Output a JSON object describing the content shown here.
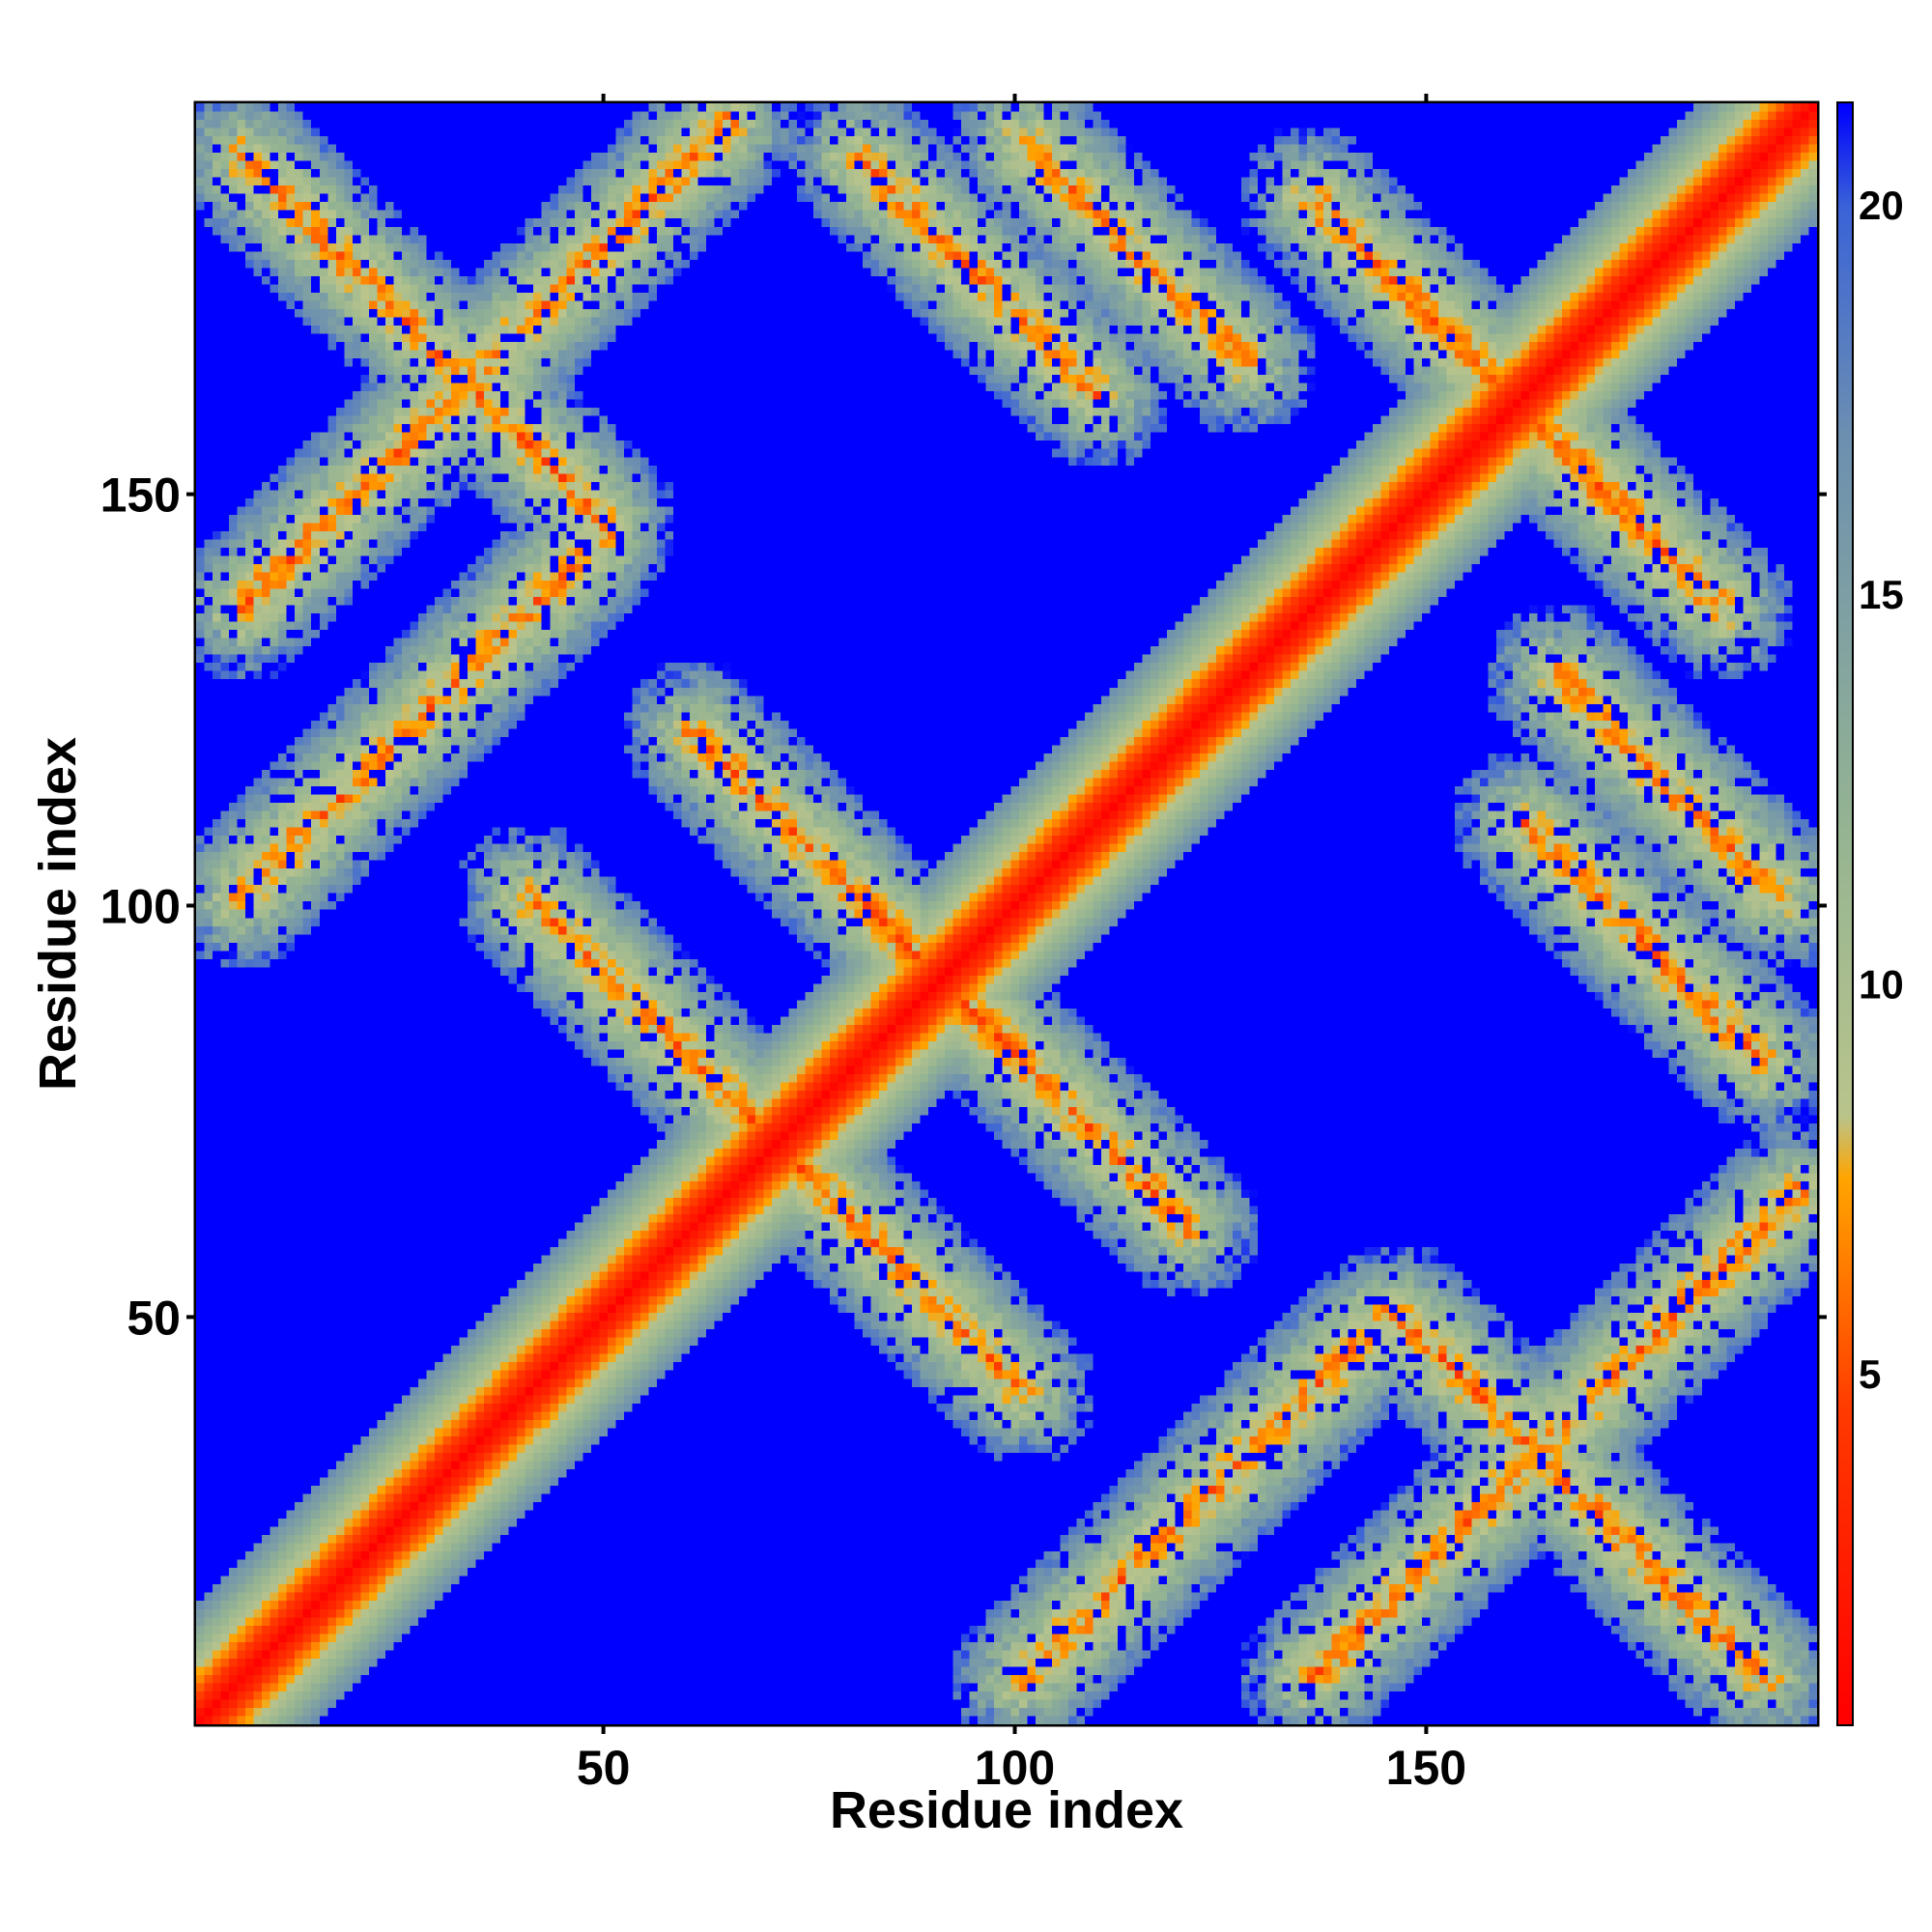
{
  "chart_data": {
    "type": "heatmap",
    "title": "",
    "xlabel": "Residue index",
    "ylabel": "Residue index",
    "xlim": [
      1,
      197
    ],
    "ylim": [
      1,
      197
    ],
    "xticks": [
      50,
      100,
      150
    ],
    "yticks": [
      50,
      100,
      150
    ],
    "colorbar": {
      "ticks": [
        5,
        10,
        15,
        20
      ],
      "range": [
        0.5,
        21.3
      ],
      "colors": [
        {
          "value": 0.5,
          "color": "#ff0000"
        },
        {
          "value": 4.5,
          "color": "#ff3a00"
        },
        {
          "value": 7.5,
          "color": "#ffa500"
        },
        {
          "value": 8.3,
          "color": "#b9c48c"
        },
        {
          "value": 12.0,
          "color": "#95b492"
        },
        {
          "value": 17.0,
          "color": "#6d90b0"
        },
        {
          "value": 20.0,
          "color": "#3b63d8"
        },
        {
          "value": 21.3,
          "color": "#0000ff"
        }
      ]
    },
    "matrix": "residue-residue distance map, 197 x 197, symmetric about the diagonal",
    "diagonal_distance_near": 0.5,
    "background_value": 21.3,
    "bands": [
      {
        "type": "antiparallel",
        "anchor_a": 5,
        "anchor_b": 190,
        "length": 45
      },
      {
        "type": "antiparallel",
        "anchor_a": 80,
        "anchor_b": 190,
        "length": 30
      },
      {
        "type": "antiparallel",
        "anchor_a": 100,
        "anchor_b": 192,
        "length": 28
      },
      {
        "type": "parallel",
        "anchor_a": 5,
        "anchor_b": 135,
        "length": 60
      },
      {
        "type": "antiparallel",
        "anchor_a": 40,
        "anchor_b": 100,
        "length": 35
      },
      {
        "type": "antiparallel",
        "anchor_a": 60,
        "anchor_b": 120,
        "length": 40
      },
      {
        "type": "parallel",
        "anchor_a": 100,
        "anchor_b": 5,
        "length": 45
      },
      {
        "type": "antiparallel",
        "anchor_a": 135,
        "anchor_b": 185,
        "length": 40
      }
    ]
  }
}
